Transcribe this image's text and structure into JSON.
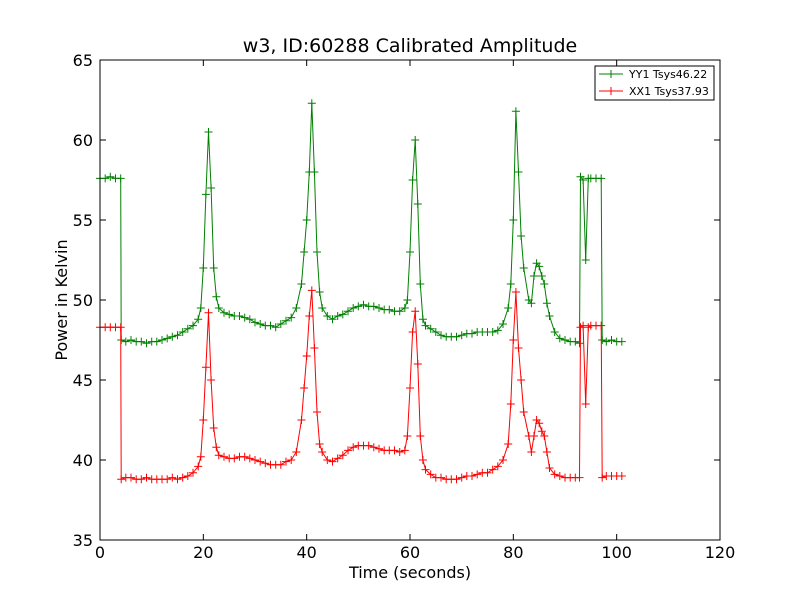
{
  "chart_data": {
    "type": "line",
    "title": "w3, ID:60288 Calibrated Amplitude",
    "xlabel": "Time (seconds)",
    "ylabel": "Power in Kelvin",
    "xlim": [
      0,
      120
    ],
    "ylim": [
      35,
      65
    ],
    "xticks": [
      0,
      20,
      40,
      60,
      80,
      100,
      120
    ],
    "yticks": [
      35,
      40,
      45,
      50,
      55,
      60,
      65
    ],
    "grid": false,
    "legend_position": "top-right",
    "marker": "plus",
    "series": [
      {
        "name": "YY1 Tsys46.22",
        "color": "#008000",
        "points": [
          [
            0,
            57.6
          ],
          [
            1,
            57.6
          ],
          [
            2,
            57.7
          ],
          [
            3,
            57.6
          ],
          [
            4,
            57.6
          ],
          [
            4.1,
            47.5
          ],
          [
            5,
            47.4
          ],
          [
            6,
            47.5
          ],
          [
            7,
            47.4
          ],
          [
            8,
            47.4
          ],
          [
            9,
            47.3
          ],
          [
            10,
            47.4
          ],
          [
            11,
            47.4
          ],
          [
            12,
            47.5
          ],
          [
            13,
            47.6
          ],
          [
            14,
            47.7
          ],
          [
            15,
            47.8
          ],
          [
            16,
            48.0
          ],
          [
            17,
            48.2
          ],
          [
            18,
            48.4
          ],
          [
            19,
            48.8
          ],
          [
            19.5,
            49.5
          ],
          [
            20,
            52.0
          ],
          [
            20.5,
            56.6
          ],
          [
            21,
            60.5
          ],
          [
            21.5,
            57.0
          ],
          [
            22,
            52.0
          ],
          [
            22.5,
            50.2
          ],
          [
            23,
            49.5
          ],
          [
            24,
            49.2
          ],
          [
            25,
            49.1
          ],
          [
            26,
            49.0
          ],
          [
            27,
            49.0
          ],
          [
            28,
            48.9
          ],
          [
            29,
            48.8
          ],
          [
            30,
            48.6
          ],
          [
            31,
            48.5
          ],
          [
            32,
            48.4
          ],
          [
            33,
            48.4
          ],
          [
            34,
            48.3
          ],
          [
            35,
            48.5
          ],
          [
            36,
            48.7
          ],
          [
            37,
            48.9
          ],
          [
            38,
            49.5
          ],
          [
            39,
            51.0
          ],
          [
            39.5,
            53.0
          ],
          [
            40,
            55.0
          ],
          [
            40.5,
            58.0
          ],
          [
            41,
            62.3
          ],
          [
            41.5,
            58.0
          ],
          [
            42,
            53.0
          ],
          [
            42.5,
            50.5
          ],
          [
            43,
            49.5
          ],
          [
            44,
            49.0
          ],
          [
            45,
            48.8
          ],
          [
            46,
            49.0
          ],
          [
            47,
            49.1
          ],
          [
            48,
            49.3
          ],
          [
            49,
            49.5
          ],
          [
            50,
            49.6
          ],
          [
            51,
            49.7
          ],
          [
            52,
            49.6
          ],
          [
            53,
            49.6
          ],
          [
            54,
            49.5
          ],
          [
            55,
            49.4
          ],
          [
            56,
            49.4
          ],
          [
            57,
            49.3
          ],
          [
            58,
            49.3
          ],
          [
            59,
            49.5
          ],
          [
            59.5,
            50.0
          ],
          [
            60,
            53.0
          ],
          [
            60.5,
            57.5
          ],
          [
            61,
            60.0
          ],
          [
            61.5,
            56.0
          ],
          [
            62,
            51.0
          ],
          [
            62.5,
            48.8
          ],
          [
            63,
            48.4
          ],
          [
            64,
            48.2
          ],
          [
            65,
            48.0
          ],
          [
            66,
            47.8
          ],
          [
            67,
            47.7
          ],
          [
            68,
            47.7
          ],
          [
            69,
            47.7
          ],
          [
            70,
            47.8
          ],
          [
            71,
            47.9
          ],
          [
            72,
            47.9
          ],
          [
            73,
            48.0
          ],
          [
            74,
            48.0
          ],
          [
            75,
            48.0
          ],
          [
            76,
            48.0
          ],
          [
            77,
            48.1
          ],
          [
            78,
            48.5
          ],
          [
            79,
            49.5
          ],
          [
            79.5,
            51.0
          ],
          [
            80,
            55.0
          ],
          [
            80.5,
            61.8
          ],
          [
            81,
            58.0
          ],
          [
            81.5,
            54.0
          ],
          [
            82,
            52.0
          ],
          [
            83,
            50.0
          ],
          [
            83.5,
            49.8
          ],
          [
            84,
            51.5
          ],
          [
            84.5,
            52.3
          ],
          [
            85,
            52.1
          ],
          [
            85.5,
            51.5
          ],
          [
            86,
            51.0
          ],
          [
            86.5,
            49.8
          ],
          [
            87,
            49.0
          ],
          [
            88,
            48.0
          ],
          [
            89,
            47.6
          ],
          [
            90,
            47.5
          ],
          [
            91,
            47.4
          ],
          [
            92,
            47.4
          ],
          [
            92.8,
            47.3
          ],
          [
            93,
            57.7
          ],
          [
            93.5,
            57.5
          ],
          [
            94,
            52.5
          ],
          [
            94.5,
            57.6
          ],
          [
            95,
            57.6
          ],
          [
            96,
            57.6
          ],
          [
            97,
            57.6
          ],
          [
            97.2,
            47.5
          ],
          [
            98,
            47.4
          ],
          [
            99,
            47.5
          ],
          [
            100,
            47.4
          ],
          [
            101,
            47.4
          ]
        ]
      },
      {
        "name": "XX1 Tsys37.93",
        "color": "#ff0000",
        "points": [
          [
            0,
            48.3
          ],
          [
            1,
            48.3
          ],
          [
            2,
            48.3
          ],
          [
            3,
            48.3
          ],
          [
            4,
            48.3
          ],
          [
            4.1,
            38.8
          ],
          [
            5,
            38.9
          ],
          [
            6,
            38.9
          ],
          [
            7,
            38.8
          ],
          [
            8,
            38.8
          ],
          [
            9,
            38.9
          ],
          [
            10,
            38.8
          ],
          [
            11,
            38.8
          ],
          [
            12,
            38.8
          ],
          [
            13,
            38.8
          ],
          [
            14,
            38.9
          ],
          [
            15,
            38.8
          ],
          [
            16,
            38.9
          ],
          [
            17,
            39.0
          ],
          [
            18,
            39.2
          ],
          [
            19,
            39.6
          ],
          [
            19.5,
            40.2
          ],
          [
            20,
            42.5
          ],
          [
            20.5,
            45.8
          ],
          [
            21,
            49.2
          ],
          [
            21.5,
            45.0
          ],
          [
            22,
            42.0
          ],
          [
            22.5,
            40.8
          ],
          [
            23,
            40.3
          ],
          [
            24,
            40.2
          ],
          [
            25,
            40.1
          ],
          [
            26,
            40.1
          ],
          [
            27,
            40.2
          ],
          [
            28,
            40.2
          ],
          [
            29,
            40.1
          ],
          [
            30,
            40.0
          ],
          [
            31,
            39.9
          ],
          [
            32,
            39.8
          ],
          [
            33,
            39.7
          ],
          [
            34,
            39.7
          ],
          [
            35,
            39.7
          ],
          [
            36,
            39.9
          ],
          [
            37,
            40.0
          ],
          [
            38,
            40.5
          ],
          [
            39,
            42.5
          ],
          [
            39.5,
            44.5
          ],
          [
            40,
            46.5
          ],
          [
            40.5,
            49.0
          ],
          [
            41,
            50.6
          ],
          [
            41.5,
            47.0
          ],
          [
            42,
            43.0
          ],
          [
            42.5,
            41.0
          ],
          [
            43,
            40.5
          ],
          [
            44,
            40.0
          ],
          [
            45,
            39.9
          ],
          [
            46,
            40.1
          ],
          [
            47,
            40.3
          ],
          [
            48,
            40.6
          ],
          [
            49,
            40.8
          ],
          [
            50,
            40.9
          ],
          [
            51,
            40.9
          ],
          [
            52,
            40.9
          ],
          [
            53,
            40.8
          ],
          [
            54,
            40.7
          ],
          [
            55,
            40.6
          ],
          [
            56,
            40.6
          ],
          [
            57,
            40.6
          ],
          [
            58,
            40.5
          ],
          [
            59,
            40.6
          ],
          [
            59.5,
            41.5
          ],
          [
            60,
            44.5
          ],
          [
            60.5,
            48.0
          ],
          [
            61,
            49.3
          ],
          [
            61.5,
            46.0
          ],
          [
            62,
            41.5
          ],
          [
            62.5,
            40.0
          ],
          [
            63,
            39.4
          ],
          [
            64,
            39.1
          ],
          [
            65,
            38.9
          ],
          [
            66,
            38.9
          ],
          [
            67,
            38.8
          ],
          [
            68,
            38.8
          ],
          [
            69,
            38.8
          ],
          [
            70,
            38.9
          ],
          [
            71,
            39.0
          ],
          [
            72,
            39.0
          ],
          [
            73,
            39.1
          ],
          [
            74,
            39.2
          ],
          [
            75,
            39.2
          ],
          [
            76,
            39.4
          ],
          [
            77,
            39.6
          ],
          [
            78,
            40.0
          ],
          [
            79,
            41.0
          ],
          [
            79.5,
            43.5
          ],
          [
            80,
            47.5
          ],
          [
            80.5,
            50.5
          ],
          [
            81,
            47.0
          ],
          [
            81.5,
            45.0
          ],
          [
            82,
            43.0
          ],
          [
            83,
            41.5
          ],
          [
            83.5,
            40.5
          ],
          [
            84,
            41.5
          ],
          [
            84.5,
            42.5
          ],
          [
            85,
            42.3
          ],
          [
            85.5,
            41.8
          ],
          [
            86,
            41.5
          ],
          [
            86.5,
            40.5
          ],
          [
            87,
            39.5
          ],
          [
            88,
            39.1
          ],
          [
            89,
            39.0
          ],
          [
            90,
            38.9
          ],
          [
            91,
            38.9
          ],
          [
            92,
            38.9
          ],
          [
            92.8,
            38.9
          ],
          [
            93,
            48.3
          ],
          [
            93.5,
            48.4
          ],
          [
            94,
            43.5
          ],
          [
            94.5,
            48.3
          ],
          [
            95,
            48.4
          ],
          [
            96,
            48.4
          ],
          [
            97,
            48.4
          ],
          [
            97.2,
            38.9
          ],
          [
            98,
            39.0
          ],
          [
            99,
            39.0
          ],
          [
            100,
            39.0
          ],
          [
            101,
            39.0
          ]
        ]
      }
    ]
  }
}
